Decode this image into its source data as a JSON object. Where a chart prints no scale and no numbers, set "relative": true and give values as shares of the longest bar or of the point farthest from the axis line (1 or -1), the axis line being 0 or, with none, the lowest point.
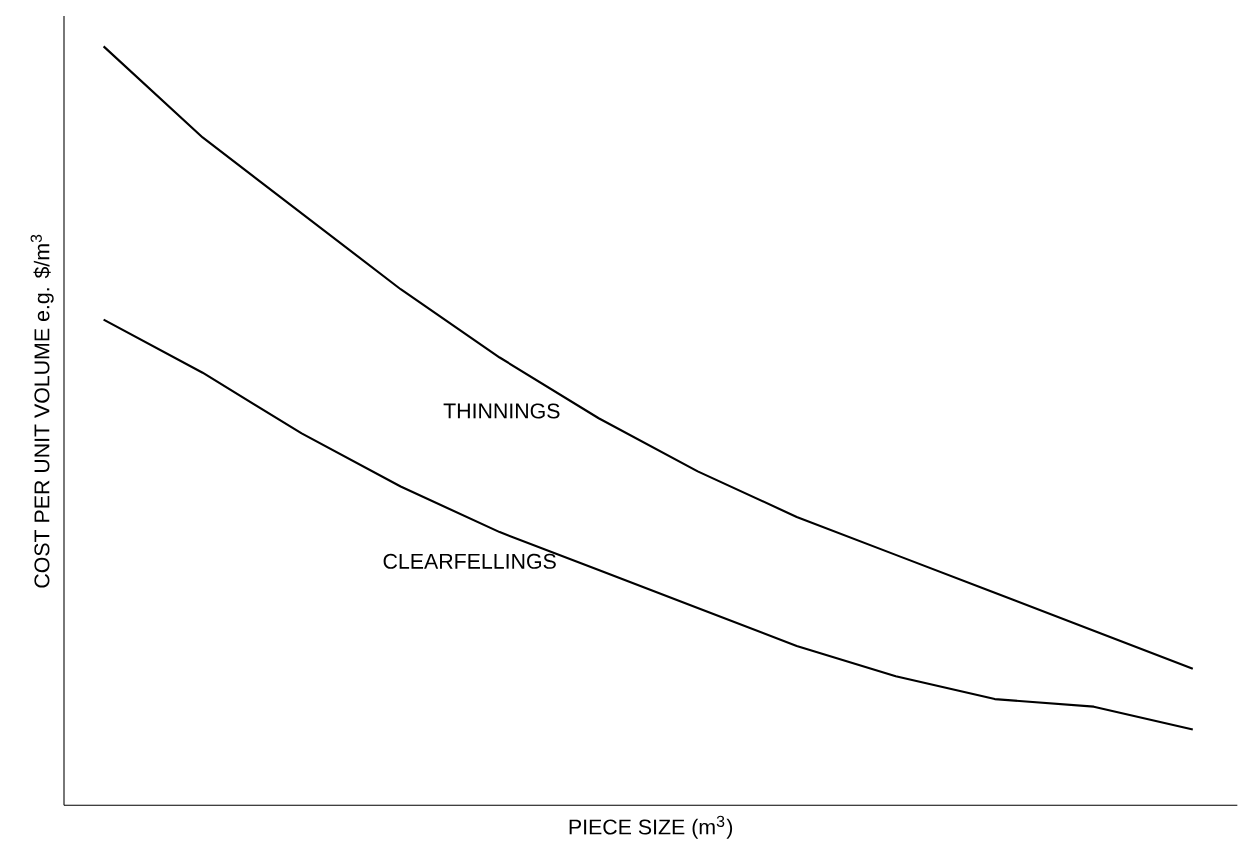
{
  "chart_data": {
    "type": "line",
    "relative": true,
    "xlabel": "PIECE SIZE (m$^{3}$)",
    "ylabel": "COST PER UNIT VOLUME e.g. $/m$^{3}$",
    "categories": [
      null,
      null,
      null,
      null,
      null,
      null,
      null,
      null,
      null,
      null,
      null,
      null
    ],
    "series": [
      {
        "name": "THINNINGS",
        "color": "#000000",
        "values": [
          1.0,
          0.88,
          0.78,
          0.68,
          0.59,
          0.51,
          0.44,
          0.38,
          0.33,
          0.28,
          0.23,
          0.18
        ]
      },
      {
        "name": "CLEARFELLINGS",
        "color": "#000000",
        "values": [
          0.64,
          0.57,
          0.49,
          0.42,
          0.36,
          0.31,
          0.26,
          0.21,
          0.17,
          0.14,
          0.13,
          0.1
        ]
      }
    ]
  }
}
